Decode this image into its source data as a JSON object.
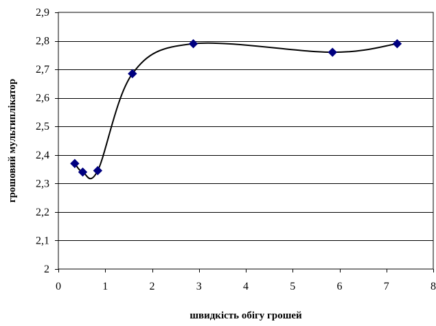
{
  "chart_data": {
    "type": "scatter",
    "title": "",
    "xlabel": "швидкість обігу грошей",
    "ylabel": "грошовий мультиплікатор",
    "xlim": [
      0,
      8
    ],
    "ylim": [
      2,
      2.9
    ],
    "x_ticks": [
      0,
      1,
      2,
      3,
      4,
      5,
      6,
      7,
      8
    ],
    "x_tick_labels": [
      "0",
      "1",
      "2",
      "3",
      "4",
      "5",
      "6",
      "7",
      "8"
    ],
    "y_ticks": [
      2,
      2.1,
      2.2,
      2.3,
      2.4,
      2.5,
      2.6,
      2.7,
      2.8,
      2.9
    ],
    "y_tick_labels": [
      "2",
      "2,1",
      "2,2",
      "2,3",
      "2,4",
      "2,5",
      "2,6",
      "2,7",
      "2,8",
      "2,9"
    ],
    "grid": "horizontal",
    "legend": "none",
    "series": [
      {
        "marker": "diamond",
        "line": "smooth",
        "color": "#000080",
        "line_color": "#000000",
        "x": [
          0.35,
          0.52,
          0.84,
          1.58,
          2.88,
          5.85,
          7.23
        ],
        "y": [
          2.37,
          2.34,
          2.345,
          2.685,
          2.79,
          2.76,
          2.79
        ]
      }
    ]
  }
}
